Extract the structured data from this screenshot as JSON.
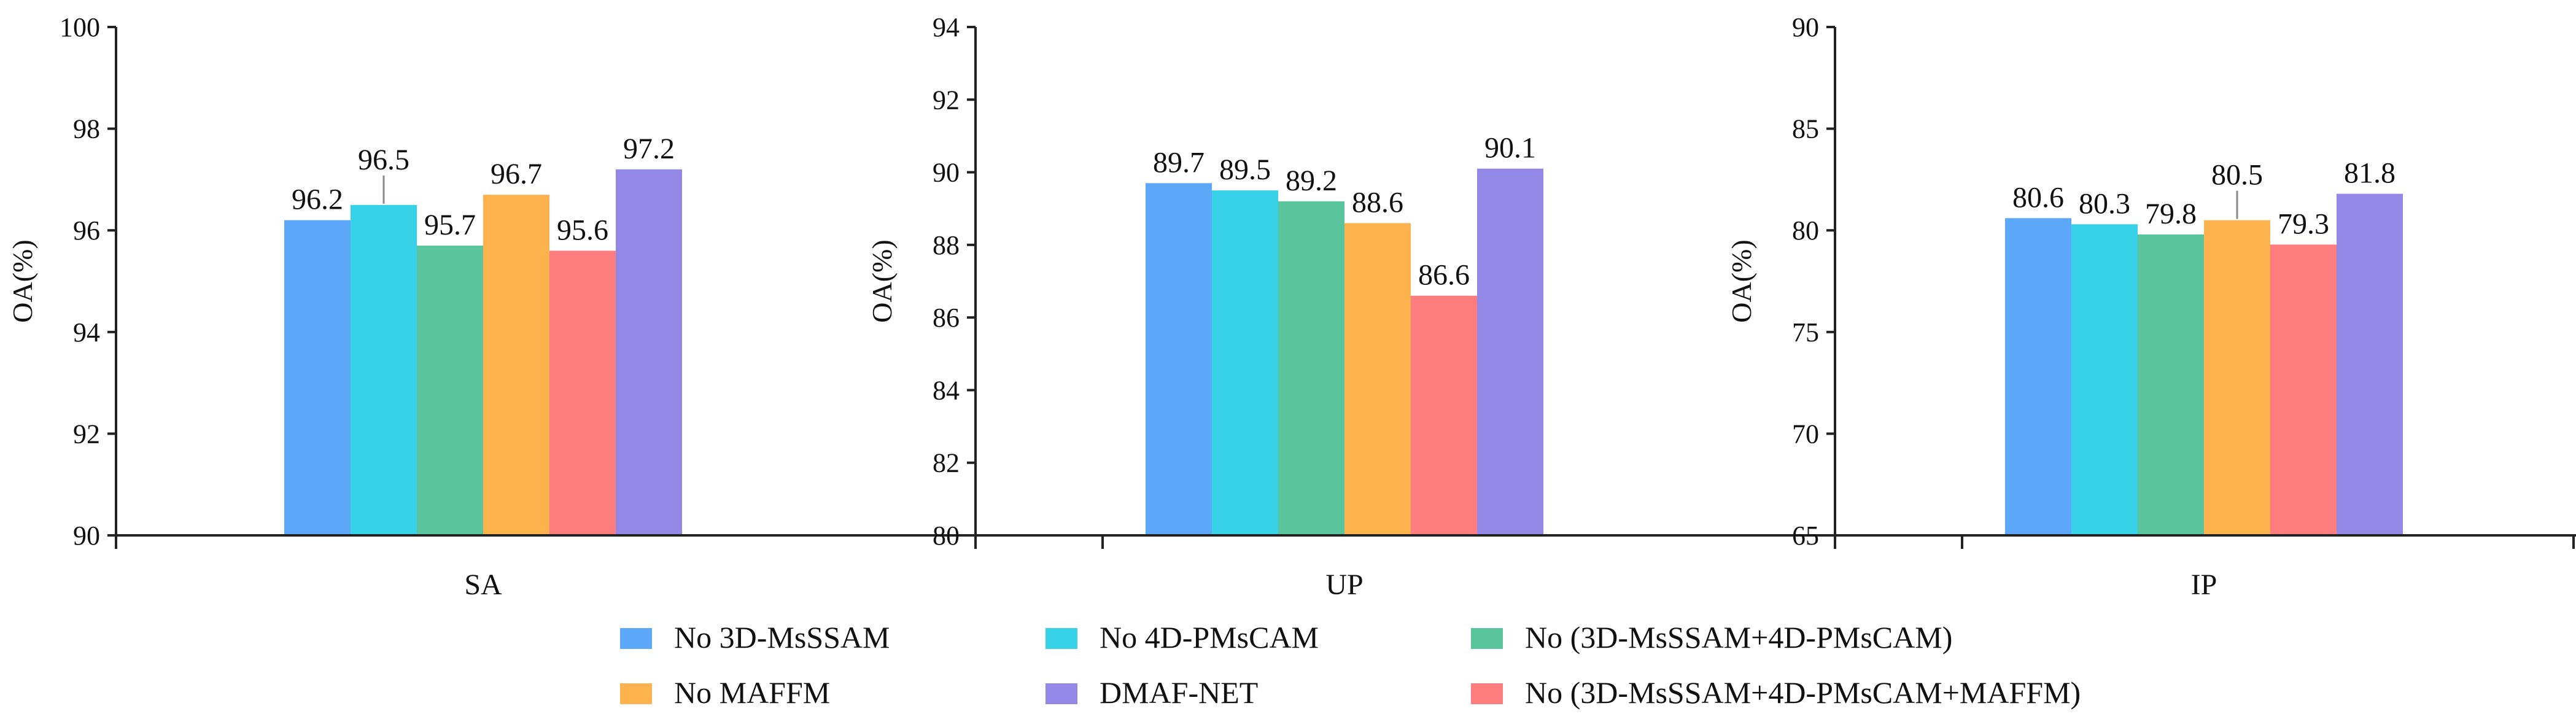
{
  "colors": {
    "no_3d_mssam": "#5CA7F7",
    "no_4d_pmscam": "#38D2E8",
    "no_3d_4d": "#5AC49C",
    "no_maffm": "#FDB34D",
    "dmaf_net": "#9388E5",
    "no_all": "#FD7C7D"
  },
  "chart_data": [
    {
      "type": "bar",
      "ylabel": "OA(%)",
      "categories": [
        "SA"
      ],
      "ylim": [
        90,
        100
      ],
      "yticks": [
        90,
        92,
        94,
        96,
        98,
        100
      ],
      "series": [
        {
          "name": "No 3D-MsSSAM",
          "values": [
            96.2
          ]
        },
        {
          "name": "No 4D-PMsCAM",
          "values": [
            96.5
          ]
        },
        {
          "name": "No (3D-MsSSAM+4D-PMsCAM)",
          "values": [
            95.7
          ]
        },
        {
          "name": "No MAFFM",
          "values": [
            96.7
          ]
        },
        {
          "name": "No (3D-MsSSAM+4D-PMsCAM+MAFFM)",
          "values": [
            95.6
          ]
        },
        {
          "name": "DMAF-NET",
          "values": [
            97.2
          ]
        }
      ],
      "data_labels": [
        "96.2",
        "96.5",
        "95.7",
        "96.7",
        "95.6",
        "97.2"
      ]
    },
    {
      "type": "bar",
      "ylabel": "OA(%)",
      "categories": [
        "UP"
      ],
      "ylim": [
        80,
        94
      ],
      "yticks": [
        80,
        82,
        84,
        86,
        88,
        90,
        92,
        94
      ],
      "series": [
        {
          "name": "No 3D-MsSSAM",
          "values": [
            89.7
          ]
        },
        {
          "name": "No 4D-PMsCAM",
          "values": [
            89.5
          ]
        },
        {
          "name": "No (3D-MsSSAM+4D-PMsCAM)",
          "values": [
            89.2
          ]
        },
        {
          "name": "No MAFFM",
          "values": [
            88.6
          ]
        },
        {
          "name": "No (3D-MsSSAM+4D-PMsCAM+MAFFM)",
          "values": [
            86.6
          ]
        },
        {
          "name": "DMAF-NET",
          "values": [
            90.1
          ]
        }
      ],
      "data_labels": [
        "89.7",
        "89.5",
        "89.2",
        "88.6",
        "86.6",
        "90.1"
      ]
    },
    {
      "type": "bar",
      "ylabel": "OA(%)",
      "categories": [
        "IP"
      ],
      "ylim": [
        65,
        90
      ],
      "yticks": [
        65,
        70,
        75,
        80,
        85,
        90
      ],
      "series": [
        {
          "name": "No 3D-MsSSAM",
          "values": [
            80.6
          ]
        },
        {
          "name": "No 4D-PMsCAM",
          "values": [
            80.3
          ]
        },
        {
          "name": "No (3D-MsSSAM+4D-PMsCAM)",
          "values": [
            79.8
          ]
        },
        {
          "name": "No MAFFM",
          "values": [
            80.5
          ]
        },
        {
          "name": "No (3D-MsSSAM+4D-PMsCAM+MAFFM)",
          "values": [
            79.3
          ]
        },
        {
          "name": "DMAF-NET",
          "values": [
            81.8
          ]
        }
      ],
      "data_labels": [
        "80.6",
        "80.3",
        "79.8",
        "80.5",
        "79.3",
        "81.8"
      ]
    }
  ],
  "legend": {
    "position": "bottom",
    "items": [
      {
        "label": "No 3D-MsSSAM",
        "color_key": "no_3d_mssam"
      },
      {
        "label": "No 4D-PMsCAM",
        "color_key": "no_4d_pmscam"
      },
      {
        "label": "No (3D-MsSSAM+4D-PMsCAM)",
        "color_key": "no_3d_4d"
      },
      {
        "label": "No MAFFM",
        "color_key": "no_maffm"
      },
      {
        "label": "DMAF-NET",
        "color_key": "dmaf_net"
      },
      {
        "label": "No (3D-MsSSAM+4D-PMsCAM+MAFFM)",
        "color_key": "no_all"
      }
    ]
  }
}
